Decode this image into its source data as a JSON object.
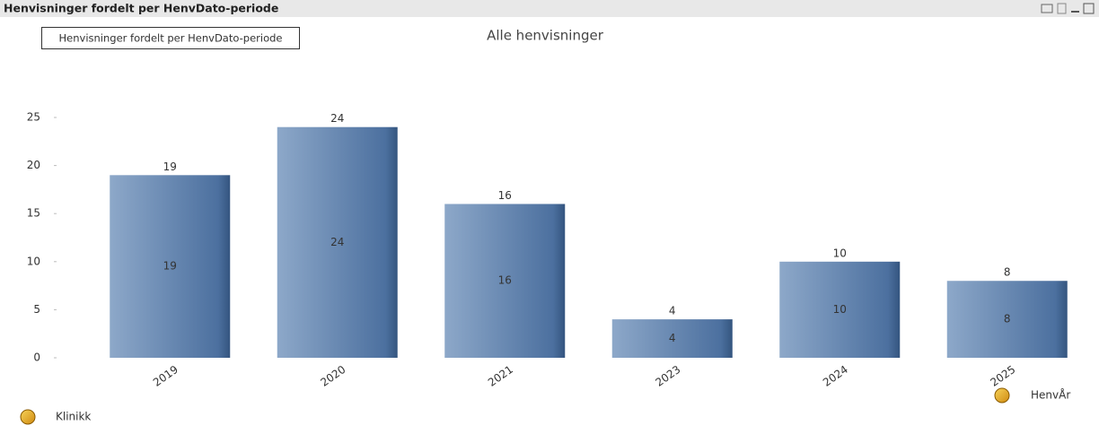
{
  "chart_data": {
    "type": "bar",
    "window_title": "Henvisninger fordelt per HenvDato-periode",
    "tooltip": "Henvisninger fordelt per HenvDato-periode",
    "title": "Alle henvisninger",
    "categories": [
      "2019",
      "2020",
      "2021",
      "2023",
      "2024",
      "2025"
    ],
    "values": [
      19,
      24,
      16,
      4,
      10,
      8
    ],
    "ylim": [
      0,
      25
    ],
    "yticks": [
      0,
      5,
      10,
      15,
      20,
      25
    ],
    "grid": false,
    "x_label": "HenvÅr",
    "dimension_label": "Klinikk"
  }
}
